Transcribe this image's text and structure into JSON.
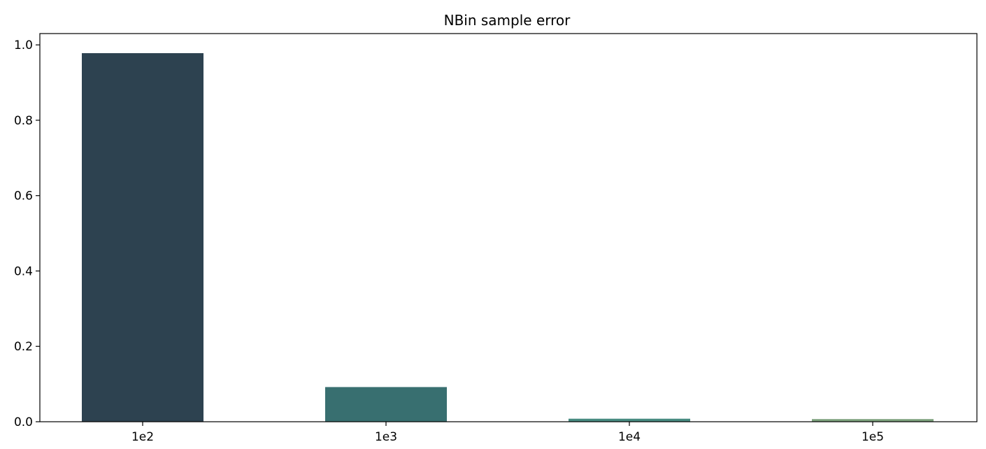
{
  "chart_data": {
    "type": "bar",
    "title": "NBin sample error",
    "xlabel": "",
    "ylabel": "",
    "categories": [
      "1e2",
      "1e3",
      "1e4",
      "1e5"
    ],
    "values": [
      0.978,
      0.092,
      0.008,
      0.007
    ],
    "bar_colors": [
      "#2d4250",
      "#386f70",
      "#468a80",
      "#7ca17c"
    ],
    "ylim": [
      0,
      1.03
    ],
    "yticks": [
      0.0,
      0.2,
      0.4,
      0.6,
      0.8,
      1.0
    ],
    "ytick_labels": [
      "0.0",
      "0.2",
      "0.4",
      "0.6",
      "0.8",
      "1.0"
    ],
    "grid": false,
    "legend": "none"
  }
}
